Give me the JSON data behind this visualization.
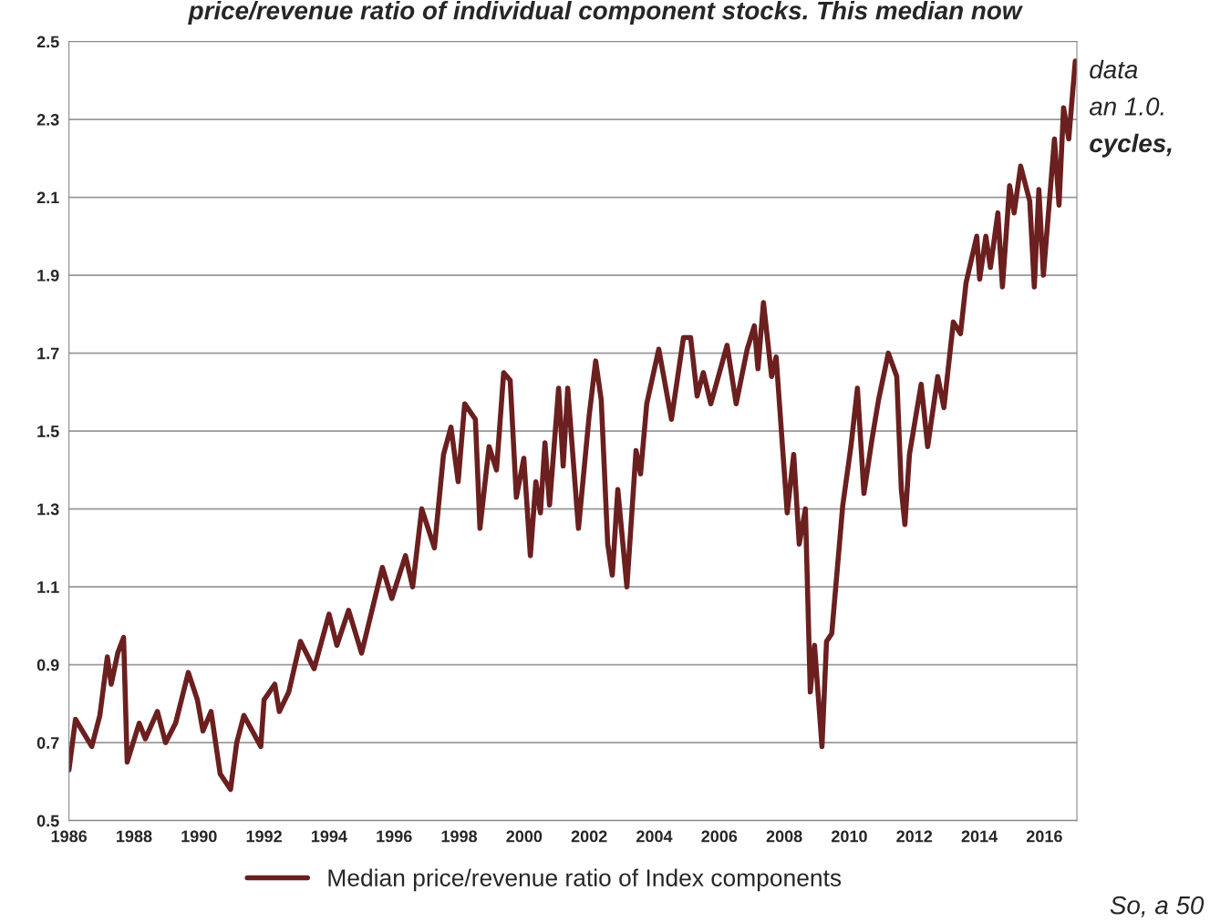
{
  "chart_data": {
    "type": "line",
    "x": [
      1986.0,
      1986.2,
      1986.7,
      1986.95,
      1987.18,
      1987.3,
      1987.5,
      1987.68,
      1987.79,
      1988.16,
      1988.35,
      1988.72,
      1988.97,
      1989.28,
      1989.67,
      1989.95,
      1990.12,
      1990.37,
      1990.65,
      1990.97,
      1991.16,
      1991.38,
      1991.9,
      1992.0,
      1992.33,
      1992.47,
      1992.76,
      1993.12,
      1993.54,
      1994.0,
      1994.24,
      1994.6,
      1995.0,
      1995.64,
      1995.93,
      1996.35,
      1996.57,
      1996.85,
      1997.24,
      1997.52,
      1997.75,
      1997.97,
      1998.17,
      1998.5,
      1998.64,
      1998.92,
      1999.15,
      1999.37,
      1999.57,
      1999.76,
      1999.99,
      2000.19,
      2000.36,
      2000.5,
      2000.64,
      2000.78,
      2001.06,
      2001.2,
      2001.34,
      2001.67,
      2002.0,
      2002.2,
      2002.37,
      2002.57,
      2002.71,
      2002.88,
      2003.16,
      2003.44,
      2003.58,
      2003.77,
      2004.14,
      2004.53,
      2004.9,
      2005.12,
      2005.32,
      2005.51,
      2005.74,
      2006.24,
      2006.52,
      2006.86,
      2007.08,
      2007.19,
      2007.36,
      2007.61,
      2007.75,
      2008.09,
      2008.29,
      2008.46,
      2008.65,
      2008.8,
      2008.93,
      2009.16,
      2009.3,
      2009.46,
      2009.8,
      2010.05,
      2010.25,
      2010.45,
      2010.7,
      2010.9,
      2011.2,
      2011.46,
      2011.6,
      2011.71,
      2011.85,
      2012.21,
      2012.41,
      2012.72,
      2012.91,
      2013.2,
      2013.42,
      2013.59,
      2013.92,
      2014.01,
      2014.2,
      2014.34,
      2014.57,
      2014.71,
      2014.93,
      2015.07,
      2015.27,
      2015.55,
      2015.69,
      2015.83,
      2015.97,
      2016.31,
      2016.45,
      2016.59,
      2016.75,
      2016.95
    ],
    "series": [
      {
        "name": "Median price/revenue ratio of Index components",
        "color": "#6b1f1f",
        "values": [
          0.63,
          0.76,
          0.69,
          0.77,
          0.92,
          0.85,
          0.93,
          0.97,
          0.65,
          0.75,
          0.71,
          0.78,
          0.7,
          0.75,
          0.88,
          0.81,
          0.73,
          0.78,
          0.62,
          0.58,
          0.7,
          0.77,
          0.69,
          0.81,
          0.85,
          0.78,
          0.83,
          0.96,
          0.89,
          1.03,
          0.95,
          1.04,
          0.93,
          1.15,
          1.07,
          1.18,
          1.1,
          1.3,
          1.2,
          1.44,
          1.51,
          1.37,
          1.57,
          1.53,
          1.25,
          1.46,
          1.4,
          1.65,
          1.63,
          1.33,
          1.43,
          1.18,
          1.37,
          1.29,
          1.47,
          1.31,
          1.61,
          1.41,
          1.61,
          1.25,
          1.54,
          1.68,
          1.58,
          1.21,
          1.13,
          1.35,
          1.1,
          1.45,
          1.39,
          1.57,
          1.71,
          1.53,
          1.74,
          1.74,
          1.59,
          1.65,
          1.57,
          1.72,
          1.57,
          1.71,
          1.77,
          1.66,
          1.83,
          1.64,
          1.69,
          1.29,
          1.44,
          1.21,
          1.3,
          0.83,
          0.95,
          0.69,
          0.96,
          0.98,
          1.31,
          1.46,
          1.61,
          1.34,
          1.48,
          1.58,
          1.7,
          1.64,
          1.35,
          1.26,
          1.44,
          1.62,
          1.46,
          1.64,
          1.56,
          1.78,
          1.75,
          1.88,
          2.0,
          1.89,
          2.0,
          1.92,
          2.06,
          1.87,
          2.13,
          2.06,
          2.18,
          2.09,
          1.87,
          2.12,
          1.9,
          2.25,
          2.08,
          2.33,
          2.25,
          2.45
        ]
      }
    ],
    "xlim": [
      1986,
      2017
    ],
    "xticks": [
      1986,
      1988,
      1990,
      1992,
      1994,
      1996,
      1998,
      2000,
      2002,
      2004,
      2006,
      2008,
      2010,
      2012,
      2014,
      2016
    ],
    "ylim": [
      0.5,
      2.5
    ],
    "yticks": [
      0.5,
      0.7,
      0.9,
      1.1,
      1.3,
      1.5,
      1.7,
      1.9,
      2.1,
      2.3,
      2.5
    ],
    "grid": "y",
    "legend": "bottom",
    "marker": "none",
    "line_style": "solid",
    "annotations": [
      "price/revenue ratio of individual component stocks. This median now",
      "data",
      "an 1.0.",
      "cycles,",
      "So, a 50"
    ]
  }
}
